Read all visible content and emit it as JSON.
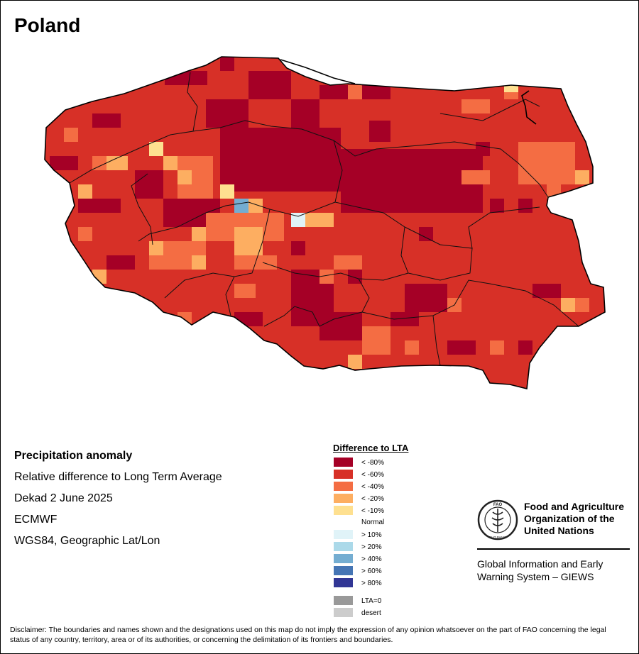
{
  "title": "Poland",
  "info": {
    "heading": "Precipitation anomaly",
    "line1": "Relative difference to Long Term Average",
    "line2": "Dekad 2 June 2025",
    "line3": "ECMWF",
    "line4": "WGS84, Geographic Lat/Lon"
  },
  "legend": {
    "title": "Difference to LTA",
    "items": [
      {
        "label": "< -80%",
        "color": "#a50026"
      },
      {
        "label": "< -60%",
        "color": "#d73027"
      },
      {
        "label": "< -40%",
        "color": "#f46d43"
      },
      {
        "label": "< -20%",
        "color": "#fdae61"
      },
      {
        "label": "< -10%",
        "color": "#fee090"
      },
      {
        "label": "Normal",
        "color": "#ffffff"
      },
      {
        "label": "> 10%",
        "color": "#e0f3f8"
      },
      {
        "label": "> 20%",
        "color": "#abd9e9"
      },
      {
        "label": "> 40%",
        "color": "#74add1"
      },
      {
        "label": "> 60%",
        "color": "#4575b4"
      },
      {
        "label": "> 80%",
        "color": "#313695"
      }
    ],
    "extra": [
      {
        "label": "LTA=0",
        "color": "#999999"
      },
      {
        "label": "desert",
        "color": "#cccccc"
      }
    ]
  },
  "logo": {
    "org_line1": "Food and Agriculture",
    "org_line2": "Organization of the",
    "org_line3": "United Nations",
    "seal_text": "FIAT PANIS",
    "seal_letters": "FAO",
    "system_line1": "Global Information and Early",
    "system_line2": "Warning System – GIEWS"
  },
  "disclaimer": "Disclaimer: The boundaries and names shown and the designations used on this map do not imply the expression of any opinion whatsoever on the part of FAO concerning the legal status of any country, territory, area or of its authorities, or concerning the delimitation of its frontiers and boundaries.",
  "map": {
    "dominant_class": "< -60%",
    "core_class": "< -80%"
  }
}
